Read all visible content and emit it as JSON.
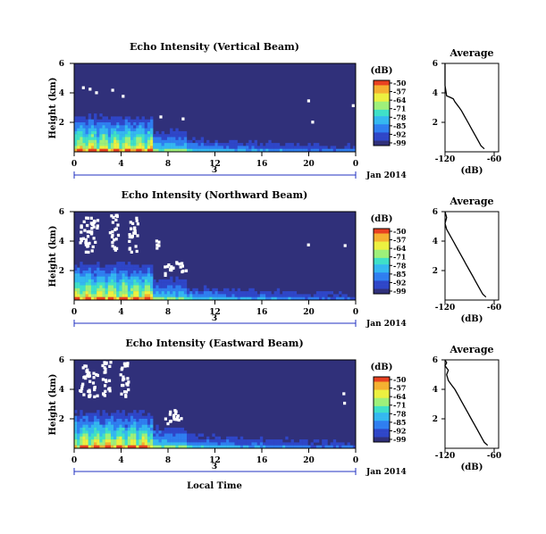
{
  "colors": {
    "background": "#30307a",
    "missing": "#ffffff",
    "date_axis": "#2030c0",
    "colormap": [
      "#30307a",
      "#2f46c8",
      "#2f7ef0",
      "#34b8f0",
      "#3fe0c8",
      "#9ef07a",
      "#ecf040",
      "#f5b030",
      "#e84020"
    ]
  },
  "chart_data": [
    {
      "type": "heatmap",
      "title": "Echo Intensity (Vertical Beam)",
      "ylabel": "Height (km)",
      "xlabel": "",
      "x_ticks": [
        "0",
        "4",
        "8",
        "12",
        "16",
        "20",
        "0"
      ],
      "y_ticks": [
        "6",
        "4",
        "2"
      ],
      "xlim": [
        0,
        24
      ],
      "ylim": [
        0,
        6
      ],
      "date_label": "3",
      "month_label": "Jan 2014",
      "colorbar": {
        "unit": "(dB)",
        "ticks": [
          "-50",
          "-57",
          "-64",
          "-71",
          "-78",
          "-85",
          "-92",
          "-99"
        ],
        "range": [
          -99,
          -50
        ]
      },
      "profile": {
        "title": "Average",
        "xlabel": "(dB)",
        "x_ticks": [
          "-120",
          "-60"
        ],
        "y_ticks": [
          "6",
          "4",
          "2"
        ],
        "xlim": [
          -120,
          -60
        ],
        "ylim": [
          0,
          6
        ],
        "x": [
          -72,
          -76,
          -80,
          -84,
          -88,
          -92,
          -96,
          -100,
          -104,
          -108,
          -110,
          -114,
          -118,
          -120,
          -120
        ],
        "y": [
          0.2,
          0.4,
          0.8,
          1.2,
          1.6,
          2.0,
          2.4,
          2.8,
          3.1,
          3.4,
          3.6,
          3.7,
          3.8,
          4.5,
          6.0
        ]
      },
      "white_patches": 12
    },
    {
      "type": "heatmap",
      "title": "Echo Intensity (Northward Beam)",
      "ylabel": "Height (km)",
      "xlabel": "",
      "x_ticks": [
        "0",
        "4",
        "8",
        "12",
        "16",
        "20",
        "0"
      ],
      "y_ticks": [
        "6",
        "4",
        "2"
      ],
      "xlim": [
        0,
        24
      ],
      "ylim": [
        0,
        6
      ],
      "date_label": "3",
      "month_label": "Jan 2014",
      "colorbar": {
        "unit": "(dB)",
        "ticks": [
          "-50",
          "-57",
          "-64",
          "-71",
          "-78",
          "-85",
          "-92",
          "-99"
        ],
        "range": [
          -99,
          -50
        ]
      },
      "profile": {
        "title": "Average",
        "xlabel": "(dB)",
        "x_ticks": [
          "-120",
          "-60"
        ],
        "y_ticks": [
          "6",
          "4",
          "2"
        ],
        "xlim": [
          -120,
          -60
        ],
        "ylim": [
          0,
          6
        ],
        "x": [
          -70,
          -74,
          -78,
          -82,
          -86,
          -90,
          -94,
          -98,
          -102,
          -106,
          -110,
          -114,
          -118,
          -120,
          -118,
          -120
        ],
        "y": [
          0.2,
          0.4,
          0.8,
          1.2,
          1.6,
          2.0,
          2.4,
          2.8,
          3.2,
          3.6,
          4.0,
          4.4,
          4.8,
          5.2,
          5.6,
          6.0
        ]
      }
    },
    {
      "type": "heatmap",
      "title": "Echo Intensity (Eastward Beam)",
      "ylabel": "Height (km)",
      "xlabel": "Local Time",
      "x_ticks": [
        "0",
        "4",
        "8",
        "12",
        "16",
        "20",
        "0"
      ],
      "y_ticks": [
        "6",
        "4",
        "2"
      ],
      "xlim": [
        0,
        24
      ],
      "ylim": [
        0,
        6
      ],
      "date_label": "3",
      "month_label": "Jan 2014",
      "colorbar": {
        "unit": "(dB)",
        "ticks": [
          "-50",
          "-57",
          "-64",
          "-71",
          "-78",
          "-85",
          "-92",
          "-99"
        ],
        "range": [
          -99,
          -50
        ]
      },
      "profile": {
        "title": "Average",
        "xlabel": "(dB)",
        "x_ticks": [
          "-120",
          "-60"
        ],
        "y_ticks": [
          "6",
          "4",
          "2"
        ],
        "xlim": [
          -120,
          -60
        ],
        "ylim": [
          0,
          6
        ],
        "x": [
          -68,
          -72,
          -76,
          -80,
          -84,
          -88,
          -92,
          -96,
          -100,
          -104,
          -108,
          -112,
          -116,
          -118,
          -116,
          -120,
          -118,
          -120
        ],
        "y": [
          0.2,
          0.4,
          0.8,
          1.2,
          1.6,
          2.0,
          2.4,
          2.8,
          3.2,
          3.6,
          4.0,
          4.3,
          4.6,
          5.0,
          5.3,
          5.6,
          5.8,
          6.0
        ]
      }
    }
  ]
}
